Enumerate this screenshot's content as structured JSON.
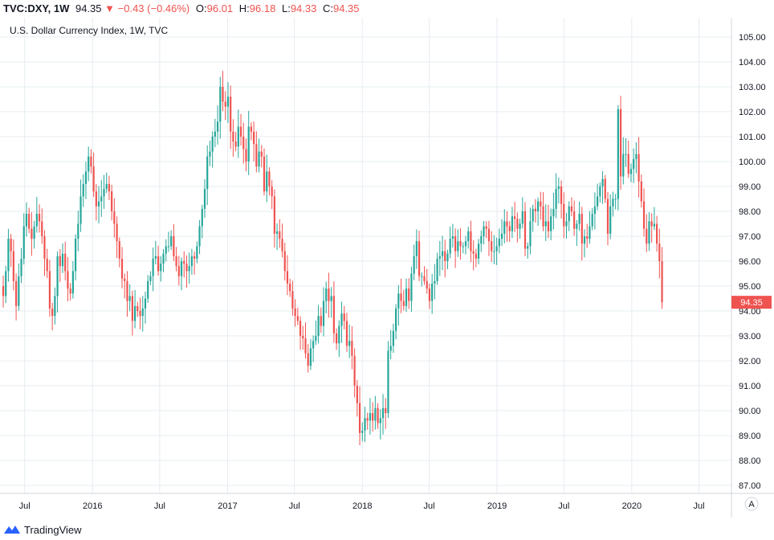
{
  "header": {
    "symbol": "TVC:DXY, 1W",
    "last": "94.35",
    "change": "−0.43 (−0.46%)",
    "o_label": "O:",
    "o": "96.01",
    "h_label": "H:",
    "h": "96.18",
    "l_label": "L:",
    "l": "94.33",
    "c_label": "C:",
    "c": "94.35"
  },
  "footer": {
    "brand": "TradingView"
  },
  "colors": {
    "up": "#26a69a",
    "down": "#ef5350",
    "grid": "#e6ecf1",
    "axis_text": "#131722"
  },
  "chart_data": {
    "type": "candlestick",
    "title": "U.S. Dollar Currency Index, 1W, TVC",
    "ylim": [
      86.5,
      105.5
    ],
    "yticks": [
      87,
      88,
      89,
      90,
      91,
      92,
      93,
      94,
      95,
      96,
      97,
      98,
      99,
      100,
      101,
      102,
      103,
      104,
      105
    ],
    "ytick_labels": [
      "87.00",
      "88.00",
      "89.00",
      "90.00",
      "91.00",
      "92.00",
      "93.00",
      "94.00",
      "95.00",
      "96.00",
      "97.00",
      "98.00",
      "99.00",
      "100.00",
      "101.00",
      "102.00",
      "103.00",
      "104.00",
      "105.00"
    ],
    "x_start": "2015-05-04",
    "xlim": [
      "2015-05-04",
      "2020-09-14"
    ],
    "xticks": [
      {
        "date": "2015-07-01",
        "label": "Jul"
      },
      {
        "date": "2016-01-01",
        "label": "2016"
      },
      {
        "date": "2016-07-01",
        "label": "Jul"
      },
      {
        "date": "2017-01-01",
        "label": "2017"
      },
      {
        "date": "2017-07-01",
        "label": "Jul"
      },
      {
        "date": "2018-01-01",
        "label": "2018"
      },
      {
        "date": "2018-07-01",
        "label": "Jul"
      },
      {
        "date": "2019-01-01",
        "label": "2019"
      },
      {
        "date": "2019-07-01",
        "label": "Jul"
      },
      {
        "date": "2020-01-01",
        "label": "2020"
      },
      {
        "date": "2020-07-01",
        "label": "Jul"
      }
    ],
    "last_price_label": "94.35",
    "last_price": 94.35,
    "auto_scale_label": "A",
    "closes": [
      94.6,
      95.6,
      96.9,
      96.4,
      95.2,
      94.2,
      95.4,
      96.1,
      97.4,
      97.9,
      97.3,
      96.9,
      97.4,
      97.9,
      97.6,
      97.0,
      96.1,
      95.6,
      94.1,
      93.8,
      94.6,
      96.2,
      95.8,
      96.3,
      95.6,
      94.9,
      94.7,
      95.6,
      96.9,
      97.5,
      98.6,
      99.1,
      99.6,
      100.2,
      99.8,
      98.8,
      98.2,
      98.4,
      98.6,
      98.9,
      99.1,
      98.8,
      98.0,
      97.5,
      96.8,
      96.1,
      95.3,
      95.2,
      94.4,
      94.6,
      93.6,
      94.2,
      94.0,
      93.8,
      94.1,
      94.5,
      95.2,
      95.4,
      96.1,
      96.2,
      95.6,
      95.9,
      96.3,
      96.6,
      96.6,
      97.0,
      96.2,
      95.8,
      95.4,
      96.0,
      95.9,
      95.6,
      95.8,
      96.2,
      96.1,
      96.6,
      97.4,
      98.1,
      98.9,
      100.2,
      100.4,
      101.0,
      101.2,
      101.6,
      103.0,
      102.4,
      102.2,
      102.6,
      101.2,
      100.8,
      100.6,
      101.4,
      101.0,
      100.5,
      100.0,
      101.4,
      101.2,
      100.7,
      99.8,
      100.4,
      100.2,
      98.8,
      99.6,
      99.0,
      98.6,
      97.1,
      97.2,
      96.9,
      96.4,
      95.6,
      95.1,
      94.8,
      94.1,
      93.8,
      93.6,
      93.0,
      92.9,
      92.3,
      91.8,
      92.5,
      92.8,
      93.0,
      93.8,
      93.4,
      94.4,
      94.9,
      94.4,
      94.6,
      93.1,
      92.7,
      93.4,
      93.9,
      93.6,
      92.6,
      92.8,
      92.2,
      91.0,
      90.3,
      89.1,
      89.2,
      89.7,
      89.6,
      89.9,
      89.6,
      90.1,
      89.5,
      89.7,
      90.1,
      89.9,
      92.4,
      92.6,
      93.2,
      94.1,
      94.7,
      94.4,
      94.2,
      94.9,
      94.4,
      95.5,
      96.2,
      96.8,
      95.4,
      95.4,
      95.2,
      94.9,
      94.4,
      95.1,
      95.2,
      96.1,
      96.2,
      96.4,
      96.0,
      96.3,
      96.9,
      97.0,
      96.4,
      96.8,
      96.6,
      96.6,
      96.8,
      97.2,
      96.4,
      96.3,
      96.1,
      96.7,
      97.0,
      97.4,
      97.3,
      96.8,
      96.4,
      96.4,
      96.6,
      96.9,
      97.1,
      97.6,
      97.4,
      97.2,
      97.8,
      97.7,
      97.3,
      97.5,
      98.0,
      96.5,
      96.6,
      97.6,
      98.1,
      98.0,
      98.4,
      98.2,
      97.4,
      97.6,
      97.2,
      97.8,
      98.1,
      98.9,
      99.0,
      98.3,
      97.4,
      97.6,
      98.2,
      98.0,
      97.3,
      97.5,
      97.9,
      96.7,
      97.0,
      96.9,
      97.4,
      97.9,
      98.2,
      98.6,
      99.0,
      99.3,
      98.5,
      97.1,
      98.2,
      98.5,
      98.5,
      102.1,
      99.4,
      100.3,
      100.3,
      99.5,
      99.7,
      100.1,
      100.3,
      99.2,
      98.4,
      97.3,
      96.7,
      97.6,
      97.4,
      97.5,
      96.7,
      96.0,
      94.35
    ]
  }
}
